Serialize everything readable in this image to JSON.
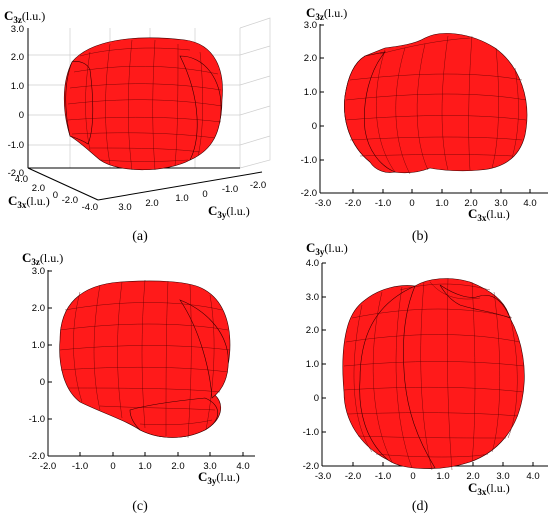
{
  "panels": [
    {
      "caption": "(a)",
      "axis_vertical": {
        "main": "C",
        "sub": "3z",
        "unit": "(l.u.)"
      },
      "axis_h1": {
        "main": "C",
        "sub": "3x",
        "unit": "(l.u.)"
      },
      "axis_h2": {
        "main": "C",
        "sub": "3y",
        "unit": "(l.u.)"
      },
      "z_ticks": [
        "3.0",
        "2.0",
        "1.0",
        "0",
        "-1.0",
        "-2.0"
      ],
      "x_ticks": [
        "4.0",
        "2.0",
        "0",
        "-2.0",
        "-4.0"
      ],
      "y_ticks": [
        "3.0",
        "2.0",
        "1.0",
        "0",
        "-1.0",
        "-2.0"
      ]
    },
    {
      "caption": "(b)",
      "axis_vertical": {
        "main": "C",
        "sub": "3z",
        "unit": "(l.u.)"
      },
      "axis_horizontal": {
        "main": "C",
        "sub": "3x",
        "unit": "(l.u.)"
      },
      "v_ticks": [
        "3.0",
        "2.0",
        "1.0",
        "0",
        "-1.0",
        "-2.0"
      ],
      "h_ticks": [
        "-3.0",
        "-2.0",
        "-1.0",
        "0",
        "1.0",
        "2.0",
        "3.0",
        "4.0"
      ]
    },
    {
      "caption": "(c)",
      "axis_vertical": {
        "main": "C",
        "sub": "3z",
        "unit": "(l.u.)"
      },
      "axis_horizontal": {
        "main": "C",
        "sub": "3y",
        "unit": "(l.u.)"
      },
      "v_ticks": [
        "3.0",
        "2.0",
        "1.0",
        "0",
        "-1.0",
        "-2.0"
      ],
      "h_ticks": [
        "-2.0",
        "-1.0",
        "0",
        "1.0",
        "2.0",
        "3.0",
        "4.0"
      ]
    },
    {
      "caption": "(d)",
      "axis_vertical": {
        "main": "C",
        "sub": "3y",
        "unit": "(l.u.)"
      },
      "axis_horizontal": {
        "main": "C",
        "sub": "3x",
        "unit": "(l.u.)"
      },
      "v_ticks": [
        "4.0",
        "3.0",
        "2.0",
        "1.0",
        "0",
        "-1.0",
        "-2.0"
      ],
      "h_ticks": [
        "-3.0",
        "-2.0",
        "-1.0",
        "0",
        "1.0",
        "2.0",
        "3.0",
        "4.0"
      ]
    }
  ],
  "colors": {
    "surface": "#ff1a1a",
    "mesh": "#5a0000",
    "grid": "#cfcfcf"
  }
}
